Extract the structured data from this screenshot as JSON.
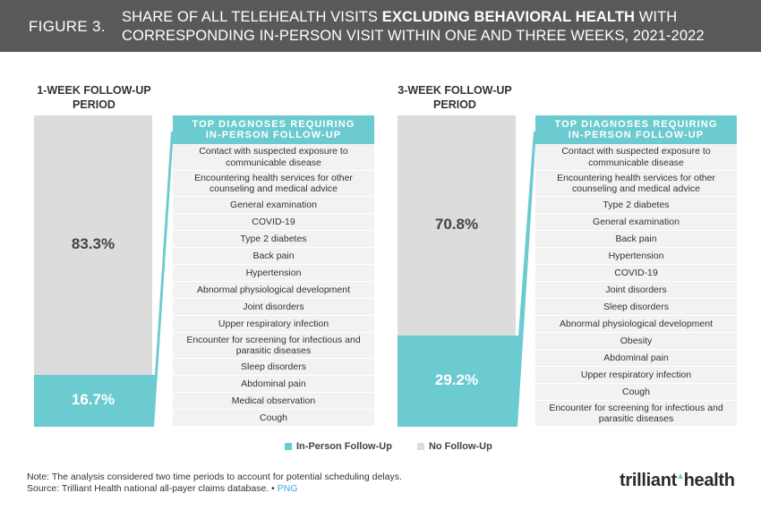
{
  "header": {
    "figure_label": "FIGURE 3.",
    "title_part1": "SHARE OF ALL TELEHEALTH VISITS ",
    "title_bold": "EXCLUDING BEHAVIORAL HEALTH",
    "title_part2": " WITH",
    "title_line2": "CORRESPONDING IN-PERSON VISIT WITHIN ONE AND THREE WEEKS, 2021-2022"
  },
  "colors": {
    "in_person": "#6ccbd0",
    "no_follow_up": "#dcdcdc",
    "header_bg": "#595959"
  },
  "chart_data": {
    "type": "bar",
    "subtype": "stacked-100",
    "title": "Share of all telehealth visits excluding behavioral health with corresponding in-person visit within one and three weeks, 2021-2022",
    "categories": [
      "1-WEEK FOLLOW-UP PERIOD",
      "3-WEEK FOLLOW-UP PERIOD"
    ],
    "series": [
      {
        "name": "In-Person Follow-Up",
        "values": [
          16.7,
          29.2
        ]
      },
      {
        "name": "No Follow-Up",
        "values": [
          83.3,
          70.8
        ]
      }
    ],
    "ylim": [
      0,
      100
    ],
    "ylabel": "",
    "xlabel": "",
    "periods": [
      {
        "title_line1": "1-WEEK FOLLOW-UP",
        "title_line2": "PERIOD",
        "in_person_label": "16.7%",
        "no_follow_up_label": "83.3%"
      },
      {
        "title_line1": "3-WEEK FOLLOW-UP",
        "title_line2": "PERIOD",
        "in_person_label": "29.2%",
        "no_follow_up_label": "70.8%"
      }
    ],
    "legend": [
      {
        "label": "In-Person Follow-Up"
      },
      {
        "label": "No Follow-Up"
      }
    ]
  },
  "panels": [
    {
      "header_line1": "TOP DIAGNOSES REQUIRING",
      "header_line2": "IN-PERSON FOLLOW-UP",
      "items": [
        "Contact with suspected exposure to communicable disease",
        "Encountering health services for other counseling and medical advice",
        "General examination",
        "COVID-19",
        "Type 2 diabetes",
        "Back pain",
        "Hypertension",
        "Abnormal physiological development",
        "Joint disorders",
        "Upper respiratory infection",
        "Encounter for screening for infectious and parasitic diseases",
        "Sleep disorders",
        "Abdominal pain",
        "Medical observation",
        "Cough"
      ]
    },
    {
      "header_line1": "TOP DIAGNOSES REQUIRING",
      "header_line2": "IN-PERSON FOLLOW-UP",
      "items": [
        "Contact with suspected exposure to communicable disease",
        "Encountering health services for other counseling and medical advice",
        "Type 2 diabetes",
        "General examination",
        "Back pain",
        "Hypertension",
        "COVID-19",
        "Joint disorders",
        "Sleep disorders",
        "Abnormal physiological development",
        "Obesity",
        "Abdominal pain",
        "Upper respiratory infection",
        "Cough",
        "Encounter for screening for infectious and parasitic diseases"
      ]
    }
  ],
  "footer": {
    "note": "Note: The analysis considered two time periods to account for potential scheduling delays.",
    "source": "Source: Trilliant Health national all-payer claims database.",
    "separator": "•",
    "png_link": "PNG",
    "logo_part1": "trilliant",
    "logo_arrow": "▲",
    "logo_part2": "health"
  }
}
